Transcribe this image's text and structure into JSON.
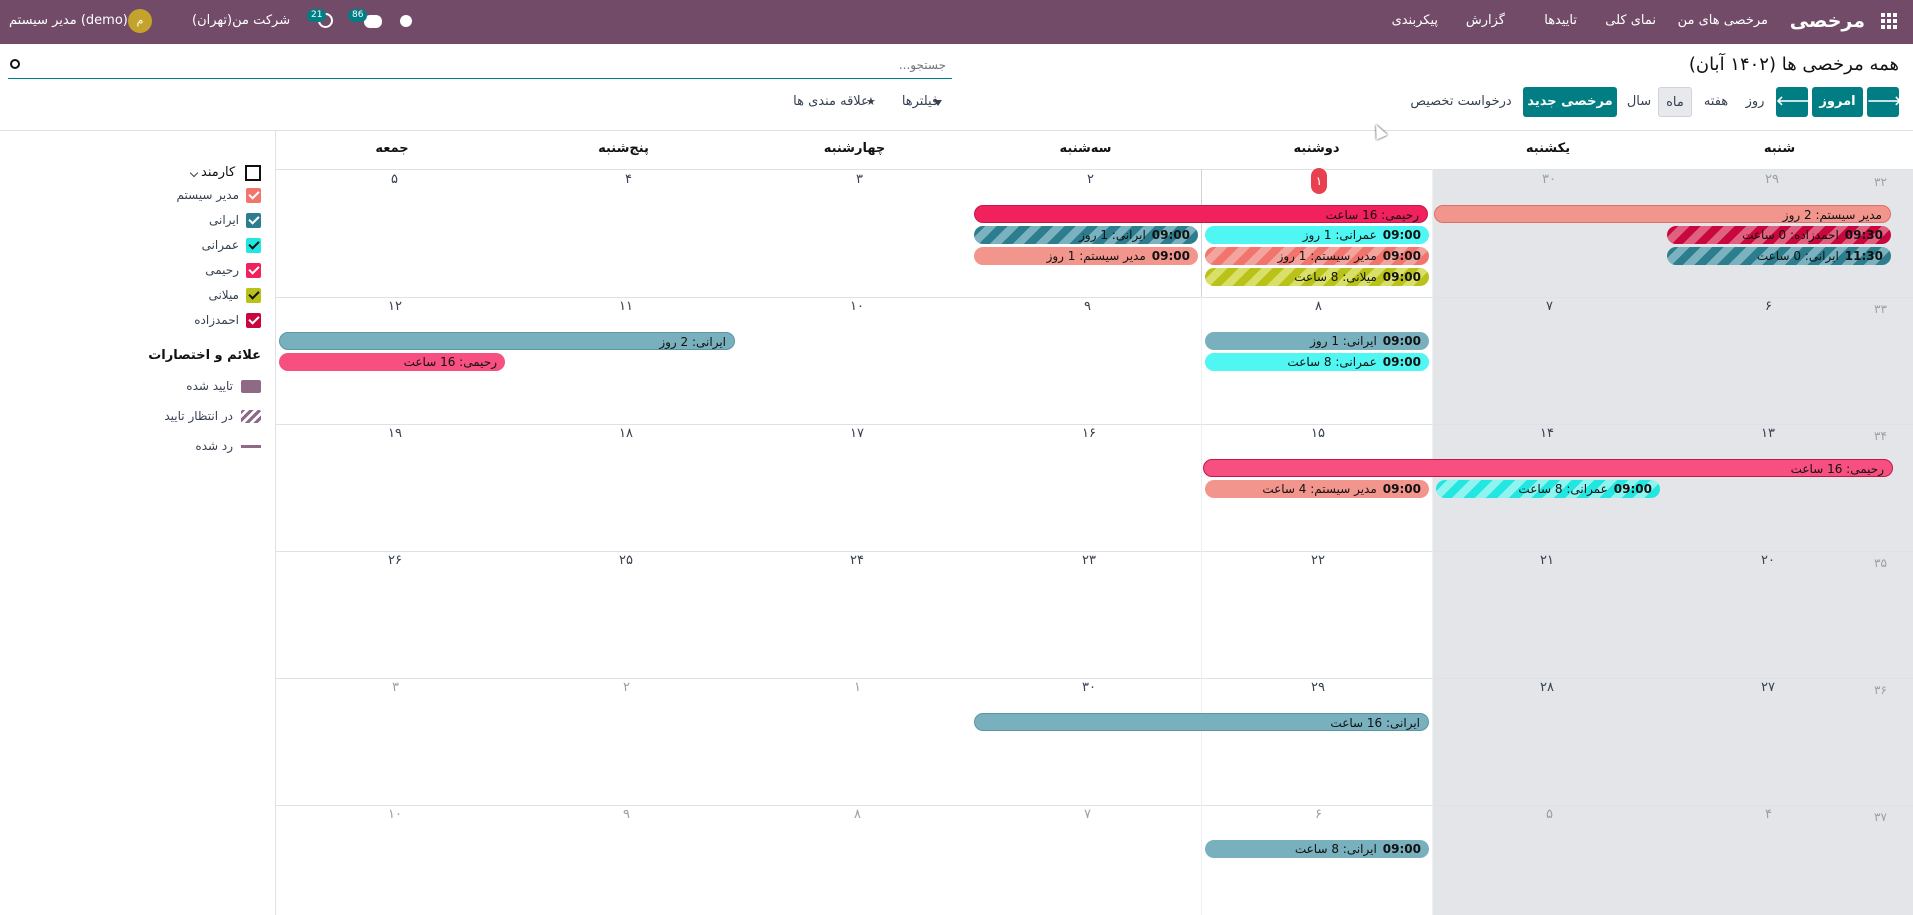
{
  "topbar": {
    "app_name": "مرخصی",
    "menu": [
      "مرخصی های من",
      "نمای کلی",
      "تاییدها",
      "گزارش",
      "پیکربندی"
    ],
    "company": "شرکت من(تهران)",
    "user": "مدیر سیستم (demo)",
    "avatar_letter": "م",
    "messages_count": "86",
    "activities_count": "21",
    "bar_color": "#714b67"
  },
  "control_panel": {
    "breadcrumb": "همه مرخصی ها (۱۴۰۲ آبان)",
    "search_placeholder": "جستجو...",
    "today_label": "امروز",
    "scale_day": "روز",
    "scale_week": "هفته",
    "scale_month": "ماه",
    "scale_year": "سال",
    "new_leave_label": "مرخصی جدید",
    "allocation_label": "درخواست تخصیص",
    "filters_label": "فیلترها",
    "favorites_label": "علاقه مندی ها"
  },
  "sidebar": {
    "employee_header": "کارمند",
    "employees": [
      {
        "name": "مدیر سیستم",
        "color": "#f2756d"
      },
      {
        "name": "ایرانی",
        "color": "#2c7d8e"
      },
      {
        "name": "عمرانی",
        "color": "#22e6e0"
      },
      {
        "name": "رحیمی",
        "color": "#f0215c"
      },
      {
        "name": "میلانی",
        "color": "#b8c218"
      },
      {
        "name": "احمدزاده",
        "color": "#c8073f"
      }
    ],
    "legend_title": "علائم و اختصارات",
    "legend": [
      "تایید شده",
      "در انتظار تایید",
      "رد شده"
    ]
  },
  "calendar": {
    "weekdays": [
      "شنبه",
      "یکشنبه",
      "دوشنبه",
      "سه‌شنبه",
      "چهارشنبه",
      "پنج‌شنبه",
      "جمعه"
    ],
    "weeks": [
      {
        "week": "۳۲",
        "days": [
          "۲۹",
          "۳۰",
          "۱",
          "۲",
          "۳",
          "۴",
          "۵"
        ]
      },
      {
        "week": "۳۳",
        "days": [
          "۶",
          "۷",
          "۸",
          "۹",
          "۱۰",
          "۱۱",
          "۱۲"
        ]
      },
      {
        "week": "۳۴",
        "days": [
          "۱۳",
          "۱۴",
          "۱۵",
          "۱۶",
          "۱۷",
          "۱۸",
          "۱۹"
        ]
      },
      {
        "week": "۳۵",
        "days": [
          "۲۰",
          "۲۱",
          "۲۲",
          "۲۳",
          "۲۴",
          "۲۵",
          "۲۶"
        ]
      },
      {
        "week": "۳۶",
        "days": [
          "۲۷",
          "۲۸",
          "۲۹",
          "۳۰",
          "۱",
          "۲",
          "۳"
        ]
      },
      {
        "week": "۳۷",
        "days": [
          "۴",
          "۵",
          "۶",
          "۷",
          "۸",
          "۹",
          "۱۰"
        ]
      }
    ],
    "events": {
      "w1_rahimi": "رحیمی: 16 ساعت",
      "w1_modir2": "مدیر سیستم: 2 روز",
      "w1_irani1": "ایرانی: 1 روز",
      "w1_irani1_time": "09:00",
      "w1_omrani1": "عمرانی: 1 روز",
      "w1_omrani1_time": "09:00",
      "w1_ahmad": "احمدزاده: 0 ساعت",
      "w1_ahmad_time": "09:30",
      "w1_modir1a": "مدیر سیستم: 1 روز",
      "w1_modir1a_time": "09:00",
      "w1_modir1b": "مدیر سیستم: 1 روز",
      "w1_modir1b_time": "09:00",
      "w1_irani0": "ایرانی: 0 ساعت",
      "w1_irani0_time": "11:30",
      "w1_milani": "میلانی: 8 ساعت",
      "w1_milani_time": "09:00",
      "w2_irani2": "ایرانی: 2 روز",
      "w2_irani1": "ایرانی: 1 روز",
      "w2_irani1_time": "09:00",
      "w2_rahimi": "رحیمی: 16 ساعت",
      "w2_omrani": "عمرانی: 8 ساعت",
      "w2_omrani_time": "09:00",
      "w3_rahimi": "رحیمی: 16 ساعت",
      "w3_modir": "مدیر سیستم: 4 ساعت",
      "w3_modir_time": "09:00",
      "w3_omrani": "عمرانی: 8 ساعت",
      "w3_omrani_time": "09:00",
      "w5_irani": "ایرانی: 16 ساعت",
      "w6_irani": "ایرانی: 8 ساعت",
      "w6_irani_time": "09:00"
    }
  }
}
